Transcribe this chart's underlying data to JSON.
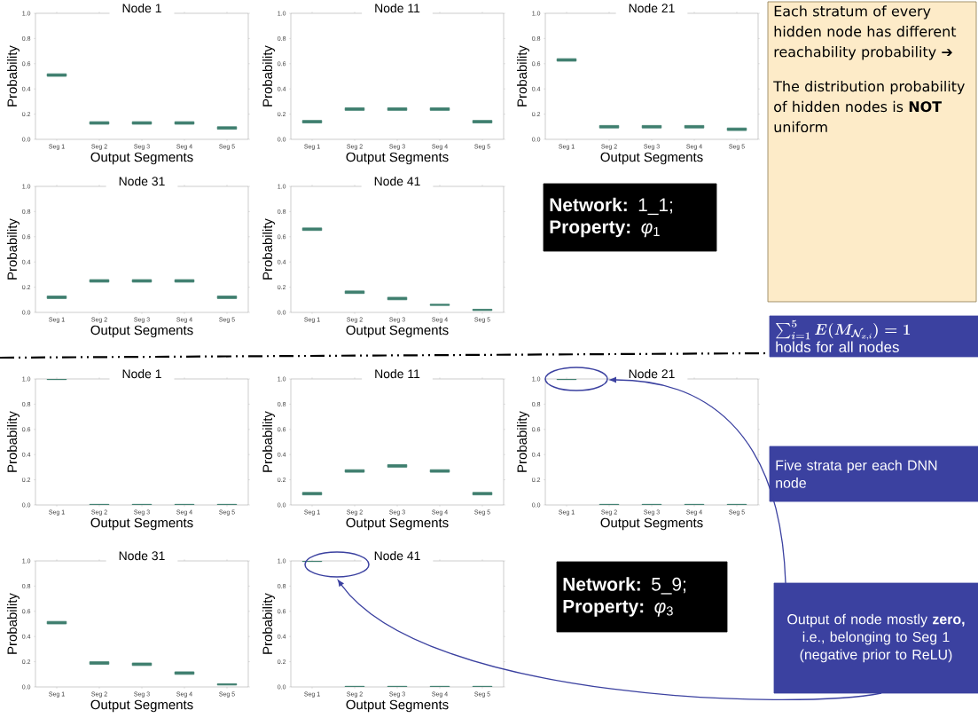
{
  "chart_data": [
    {
      "type": "box",
      "title": "Node 1",
      "xlabel": "Output Segments",
      "ylabel": "Probability",
      "categories": [
        "Seg 1",
        "Seg 2",
        "Seg 3",
        "Seg 4",
        "Seg 5"
      ],
      "color": "#3f7f6f",
      "ylim": [
        0,
        1
      ],
      "yticks": [
        {
          "value": 0,
          "label": "0.0"
        },
        {
          "value": 0.2,
          "label": "0.2"
        },
        {
          "value": 0.4,
          "label": "0.4"
        },
        {
          "value": 0.6,
          "label": "0.6"
        },
        {
          "value": 0.8,
          "label": "0.8"
        },
        {
          "value": 1,
          "label": "1.0"
        }
      ],
      "boxes": [
        {
          "low": 0.5,
          "q1": 0.5,
          "median": 0.51,
          "q3": 0.52,
          "high": 0.52
        },
        {
          "low": 0.12,
          "q1": 0.12,
          "median": 0.13,
          "q3": 0.14,
          "high": 0.14
        },
        {
          "low": 0.12,
          "q1": 0.12,
          "median": 0.13,
          "q3": 0.14,
          "high": 0.14
        },
        {
          "low": 0.12,
          "q1": 0.12,
          "median": 0.13,
          "q3": 0.14,
          "high": 0.14
        },
        {
          "low": 0.08,
          "q1": 0.08,
          "median": 0.09,
          "q3": 0.1,
          "high": 0.1
        }
      ]
    },
    {
      "type": "box",
      "title": "Node 11",
      "xlabel": "Output Segments",
      "ylabel": "Probability",
      "categories": [
        "Seg 1",
        "Seg 2",
        "Seg 3",
        "Seg 4",
        "Seg 5"
      ],
      "color": "#3f7f6f",
      "ylim": [
        0,
        1
      ],
      "yticks": [
        {
          "value": 0,
          "label": "0.0"
        },
        {
          "value": 0.2,
          "label": "0.2"
        },
        {
          "value": 0.4,
          "label": "0.4"
        },
        {
          "value": 0.6,
          "label": "0.6"
        },
        {
          "value": 0.8,
          "label": "0.8"
        },
        {
          "value": 1,
          "label": "1.0"
        }
      ],
      "boxes": [
        {
          "low": 0.13,
          "q1": 0.13,
          "median": 0.14,
          "q3": 0.15,
          "high": 0.15
        },
        {
          "low": 0.23,
          "q1": 0.23,
          "median": 0.24,
          "q3": 0.25,
          "high": 0.25
        },
        {
          "low": 0.23,
          "q1": 0.23,
          "median": 0.24,
          "q3": 0.25,
          "high": 0.25
        },
        {
          "low": 0.23,
          "q1": 0.23,
          "median": 0.24,
          "q3": 0.25,
          "high": 0.25
        },
        {
          "low": 0.13,
          "q1": 0.13,
          "median": 0.14,
          "q3": 0.15,
          "high": 0.15
        }
      ]
    },
    {
      "type": "box",
      "title": "Node 21",
      "xlabel": "Output Segments",
      "ylabel": "Probability",
      "categories": [
        "Seg 1",
        "Seg 2",
        "Seg 3",
        "Seg 4",
        "Seg 5"
      ],
      "color": "#3f7f6f",
      "ylim": [
        0,
        1
      ],
      "yticks": [
        {
          "value": 0,
          "label": "0.0"
        },
        {
          "value": 0.2,
          "label": "0.2"
        },
        {
          "value": 0.4,
          "label": "0.4"
        },
        {
          "value": 0.6,
          "label": "0.6"
        },
        {
          "value": 0.8,
          "label": "0.8"
        },
        {
          "value": 1,
          "label": "1.0"
        }
      ],
      "boxes": [
        {
          "low": 0.62,
          "q1": 0.62,
          "median": 0.63,
          "q3": 0.64,
          "high": 0.64
        },
        {
          "low": 0.09,
          "q1": 0.09,
          "median": 0.1,
          "q3": 0.11,
          "high": 0.11
        },
        {
          "low": 0.09,
          "q1": 0.09,
          "median": 0.1,
          "q3": 0.11,
          "high": 0.11
        },
        {
          "low": 0.09,
          "q1": 0.09,
          "median": 0.1,
          "q3": 0.11,
          "high": 0.11
        },
        {
          "low": 0.07,
          "q1": 0.07,
          "median": 0.08,
          "q3": 0.09,
          "high": 0.09
        }
      ]
    },
    {
      "type": "other",
      "annotations": [
        "Each stratum of every hidden node has different reachability probability ➔",
        "The distribution probability of hidden nodes is **NOT** uniform"
      ]
    },
    {
      "type": "box",
      "title": "Node 31",
      "xlabel": "Output Segments",
      "ylabel": "Probability",
      "categories": [
        "Seg 1",
        "Seg 2",
        "Seg 3",
        "Seg 4",
        "Seg 5"
      ],
      "color": "#3f7f6f",
      "ylim": [
        0,
        1
      ],
      "yticks": [
        {
          "value": 0,
          "label": "0.0"
        },
        {
          "value": 0.2,
          "label": "0.2"
        },
        {
          "value": 0.4,
          "label": "0.4"
        },
        {
          "value": 0.6,
          "label": "0.6"
        },
        {
          "value": 0.8,
          "label": "0.8"
        },
        {
          "value": 1,
          "label": "1.0"
        }
      ],
      "boxes": [
        {
          "low": 0.11,
          "q1": 0.11,
          "median": 0.12,
          "q3": 0.13,
          "high": 0.13
        },
        {
          "low": 0.24,
          "q1": 0.24,
          "median": 0.25,
          "q3": 0.26,
          "high": 0.26
        },
        {
          "low": 0.24,
          "q1": 0.24,
          "median": 0.25,
          "q3": 0.26,
          "high": 0.26
        },
        {
          "low": 0.24,
          "q1": 0.24,
          "median": 0.25,
          "q3": 0.26,
          "high": 0.26
        },
        {
          "low": 0.11,
          "q1": 0.11,
          "median": 0.12,
          "q3": 0.13,
          "high": 0.13
        }
      ]
    },
    {
      "type": "box",
      "title": "Node 41",
      "xlabel": "Output Segments",
      "ylabel": "Probability",
      "categories": [
        "Seg 1",
        "Seg 2",
        "Seg 3",
        "Seg 4",
        "Seg 5"
      ],
      "color": "#3f7f6f",
      "ylim": [
        0,
        1
      ],
      "yticks": [
        {
          "value": 0,
          "label": "0.0"
        },
        {
          "value": 0.2,
          "label": "0.2"
        },
        {
          "value": 0.4,
          "label": "0.4"
        },
        {
          "value": 0.6,
          "label": "0.6"
        },
        {
          "value": 0.8,
          "label": "0.8"
        },
        {
          "value": 1,
          "label": "1.0"
        }
      ],
      "boxes": [
        {
          "low": 0.65,
          "q1": 0.65,
          "median": 0.66,
          "q3": 0.67,
          "high": 0.67
        },
        {
          "low": 0.15,
          "q1": 0.15,
          "median": 0.16,
          "q3": 0.17,
          "high": 0.17
        },
        {
          "low": 0.1,
          "q1": 0.1,
          "median": 0.11,
          "q3": 0.12,
          "high": 0.12
        },
        {
          "low": 0.055,
          "q1": 0.055,
          "median": 0.06,
          "q3": 0.065,
          "high": 0.065
        },
        {
          "low": 0.015,
          "q1": 0.015,
          "median": 0.02,
          "q3": 0.025,
          "high": 0.025
        }
      ]
    },
    {
      "type": "other",
      "annotations": [
        "**Network:**  1_1;",
        "**Property:**  *φ*$_{1}$"
      ]
    },
    {
      "type": "other",
      "annotations": [
        "\\boldsymbol{\\sum_{i=1}^{5} E(M_{\\mathcal{N}_{x,i}}) = 1}",
        "holds for all nodes"
      ]
    },
    {
      "type": "box",
      "title": "Node 1",
      "xlabel": "Output Segments",
      "ylabel": "Probability",
      "categories": [
        "Seg 1",
        "Seg 2",
        "Seg 3",
        "Seg 4",
        "Seg 5"
      ],
      "color": "#3f7f6f",
      "ylim": [
        0,
        1
      ],
      "yticks": [
        {
          "value": 0,
          "label": "0.0"
        },
        {
          "value": 0.2,
          "label": "0.2"
        },
        {
          "value": 0.4,
          "label": "0.4"
        },
        {
          "value": 0.6,
          "label": "0.6"
        },
        {
          "value": 0.8,
          "label": "0.8"
        },
        {
          "value": 1,
          "label": "1.0"
        }
      ],
      "boxes": [
        {
          "low": 0.995,
          "q1": 0.995,
          "median": 1,
          "q3": 1,
          "high": 1
        },
        {
          "low": 0,
          "q1": 0,
          "median": 0,
          "q3": 0.005,
          "high": 0.005
        },
        {
          "low": 0,
          "q1": 0,
          "median": 0,
          "q3": 0.005,
          "high": 0.005
        },
        {
          "low": 0,
          "q1": 0,
          "median": 0,
          "q3": 0.005,
          "high": 0.005
        },
        {
          "low": 0,
          "q1": 0,
          "median": 0,
          "q3": 0.005,
          "high": 0.005
        }
      ]
    },
    {
      "type": "box",
      "title": "Node 11",
      "xlabel": "Output Segments",
      "ylabel": "Probability",
      "categories": [
        "Seg 1",
        "Seg 2",
        "Seg 3",
        "Seg 4",
        "Seg 5"
      ],
      "color": "#3f7f6f",
      "ylim": [
        0,
        1
      ],
      "yticks": [
        {
          "value": 0,
          "label": "0.0"
        },
        {
          "value": 0.2,
          "label": "0.2"
        },
        {
          "value": 0.4,
          "label": "0.4"
        },
        {
          "value": 0.6,
          "label": "0.6"
        },
        {
          "value": 0.8,
          "label": "0.8"
        },
        {
          "value": 1,
          "label": "1.0"
        }
      ],
      "boxes": [
        {
          "low": 0.08,
          "q1": 0.08,
          "median": 0.09,
          "q3": 0.1,
          "high": 0.1
        },
        {
          "low": 0.26,
          "q1": 0.26,
          "median": 0.27,
          "q3": 0.28,
          "high": 0.28
        },
        {
          "low": 0.3,
          "q1": 0.3,
          "median": 0.31,
          "q3": 0.32,
          "high": 0.32
        },
        {
          "low": 0.26,
          "q1": 0.26,
          "median": 0.27,
          "q3": 0.28,
          "high": 0.28
        },
        {
          "low": 0.08,
          "q1": 0.08,
          "median": 0.09,
          "q3": 0.1,
          "high": 0.1
        }
      ]
    },
    {
      "type": "box",
      "title": "Node 21",
      "xlabel": "Output Segments",
      "ylabel": "Probability",
      "categories": [
        "Seg 1",
        "Seg 2",
        "Seg 3",
        "Seg 4",
        "Seg 5"
      ],
      "color": "#3f7f6f",
      "ylim": [
        0,
        1
      ],
      "yticks": [
        {
          "value": 0,
          "label": "0.0"
        },
        {
          "value": 0.2,
          "label": "0.2"
        },
        {
          "value": 0.4,
          "label": "0.4"
        },
        {
          "value": 0.6,
          "label": "0.6"
        },
        {
          "value": 0.8,
          "label": "0.8"
        },
        {
          "value": 1,
          "label": "1.0"
        }
      ],
      "boxes": [
        {
          "low": 0.995,
          "q1": 0.995,
          "median": 1,
          "q3": 1,
          "high": 1
        },
        {
          "low": 0,
          "q1": 0,
          "median": 0,
          "q3": 0.005,
          "high": 0.005
        },
        {
          "low": 0,
          "q1": 0,
          "median": 0,
          "q3": 0.005,
          "high": 0.005
        },
        {
          "low": 0,
          "q1": 0,
          "median": 0,
          "q3": 0.005,
          "high": 0.005
        },
        {
          "low": 0,
          "q1": 0,
          "median": 0,
          "q3": 0.005,
          "high": 0.005
        }
      ]
    },
    {
      "type": "other",
      "annotations": [
        "Five strata per each DNN node"
      ]
    },
    {
      "type": "box",
      "title": "Node 31",
      "xlabel": "Output Segments",
      "ylabel": "Probability",
      "categories": [
        "Seg 1",
        "Seg 2",
        "Seg 3",
        "Seg 4",
        "Seg 5"
      ],
      "color": "#3f7f6f",
      "ylim": [
        0,
        1
      ],
      "yticks": [
        {
          "value": 0,
          "label": "0.0"
        },
        {
          "value": 0.2,
          "label": "0.2"
        },
        {
          "value": 0.4,
          "label": "0.4"
        },
        {
          "value": 0.6,
          "label": "0.6"
        },
        {
          "value": 0.8,
          "label": "0.8"
        },
        {
          "value": 1,
          "label": "1.0"
        }
      ],
      "boxes": [
        {
          "low": 0.5,
          "q1": 0.5,
          "median": 0.51,
          "q3": 0.52,
          "high": 0.52
        },
        {
          "low": 0.18,
          "q1": 0.18,
          "median": 0.19,
          "q3": 0.2,
          "high": 0.2
        },
        {
          "low": 0.17,
          "q1": 0.17,
          "median": 0.18,
          "q3": 0.19,
          "high": 0.19
        },
        {
          "low": 0.1,
          "q1": 0.1,
          "median": 0.11,
          "q3": 0.12,
          "high": 0.12
        },
        {
          "low": 0.015,
          "q1": 0.015,
          "median": 0.02,
          "q3": 0.025,
          "high": 0.025
        }
      ]
    },
    {
      "type": "box",
      "title": "Node 41",
      "xlabel": "Output Segments",
      "ylabel": "Probability",
      "categories": [
        "Seg 1",
        "Seg 2",
        "Seg 3",
        "Seg 4",
        "Seg 5"
      ],
      "color": "#3f7f6f",
      "ylim": [
        0,
        1
      ],
      "yticks": [
        {
          "value": 0,
          "label": "0.0"
        },
        {
          "value": 0.2,
          "label": "0.2"
        },
        {
          "value": 0.4,
          "label": "0.4"
        },
        {
          "value": 0.6,
          "label": "0.6"
        },
        {
          "value": 0.8,
          "label": "0.8"
        },
        {
          "value": 1,
          "label": "1.0"
        }
      ],
      "boxes": [
        {
          "low": 0.995,
          "q1": 0.995,
          "median": 1,
          "q3": 1,
          "high": 1
        },
        {
          "low": 0,
          "q1": 0,
          "median": 0,
          "q3": 0.005,
          "high": 0.005
        },
        {
          "low": 0,
          "q1": 0,
          "median": 0,
          "q3": 0.005,
          "high": 0.005
        },
        {
          "low": 0,
          "q1": 0,
          "median": 0,
          "q3": 0.005,
          "high": 0.005
        },
        {
          "low": 0,
          "q1": 0,
          "median": 0,
          "q3": 0.005,
          "high": 0.005
        }
      ]
    },
    {
      "type": "other",
      "annotations": [
        "**Network:**  5_9;",
        "**Property:**  *φ*$_{3}$"
      ]
    },
    {
      "type": "other",
      "annotations": [
        "Output of node mostly **zero,** i.e., belonging to Seg 1 (negative prior to ReLU)"
      ]
    }
  ]
}
